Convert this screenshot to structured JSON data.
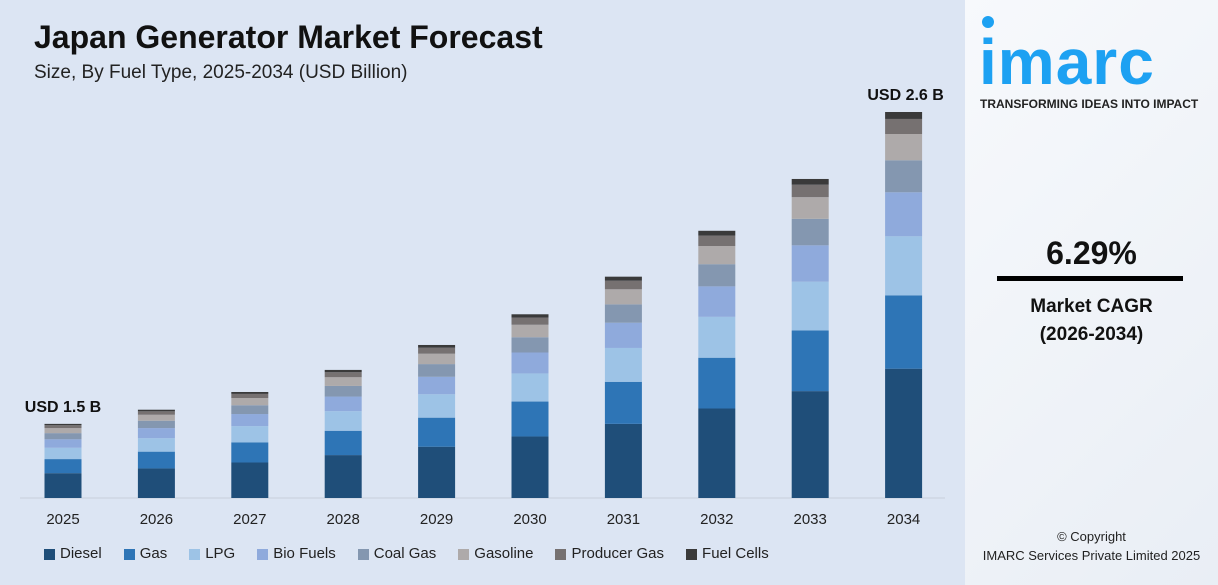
{
  "chart_data": {
    "type": "bar",
    "stacked": true,
    "title": "Japan Generator Market Forecast",
    "subtitle": "Size, By Fuel Type, 2025-2034 (USD Billion)",
    "categories": [
      "2025",
      "2026",
      "2027",
      "2028",
      "2029",
      "2030",
      "2031",
      "2032",
      "2033",
      "2034"
    ],
    "totals": [
      1.5,
      1.59,
      1.69,
      1.8,
      1.91,
      2.03,
      2.16,
      2.3,
      2.44,
      2.6
    ],
    "annotations": {
      "first": "USD 1.5 B",
      "last": "USD 2.6 B"
    },
    "series": [
      {
        "name": "Diesel",
        "share": 0.335,
        "color": "#1f4e79"
      },
      {
        "name": "Gas",
        "share": 0.19,
        "color": "#2e75b6"
      },
      {
        "name": "LPG",
        "share": 0.153,
        "color": "#9dc3e6"
      },
      {
        "name": "Bio Fuels",
        "share": 0.114,
        "color": "#8faadc"
      },
      {
        "name": "Coal Gas",
        "share": 0.083,
        "color": "#8497b0"
      },
      {
        "name": "Gasoline",
        "share": 0.068,
        "color": "#aeaaaa"
      },
      {
        "name": "Producer Gas",
        "share": 0.039,
        "color": "#767171"
      },
      {
        "name": "Fuel Cells",
        "share": 0.018,
        "color": "#3a3a3a"
      }
    ],
    "legend": "bottom",
    "grid": false
  },
  "brand": {
    "logo": "imarc",
    "tagline": "TRANSFORMING IDEAS INTO IMPACT",
    "color": "#1da1f2"
  },
  "cagr": {
    "value": "6.29%",
    "label": "Market CAGR",
    "period": "(2026-2034)"
  },
  "footer": {
    "copyright": "© Copyright",
    "company": "IMARC Services Private Limited 2025"
  }
}
